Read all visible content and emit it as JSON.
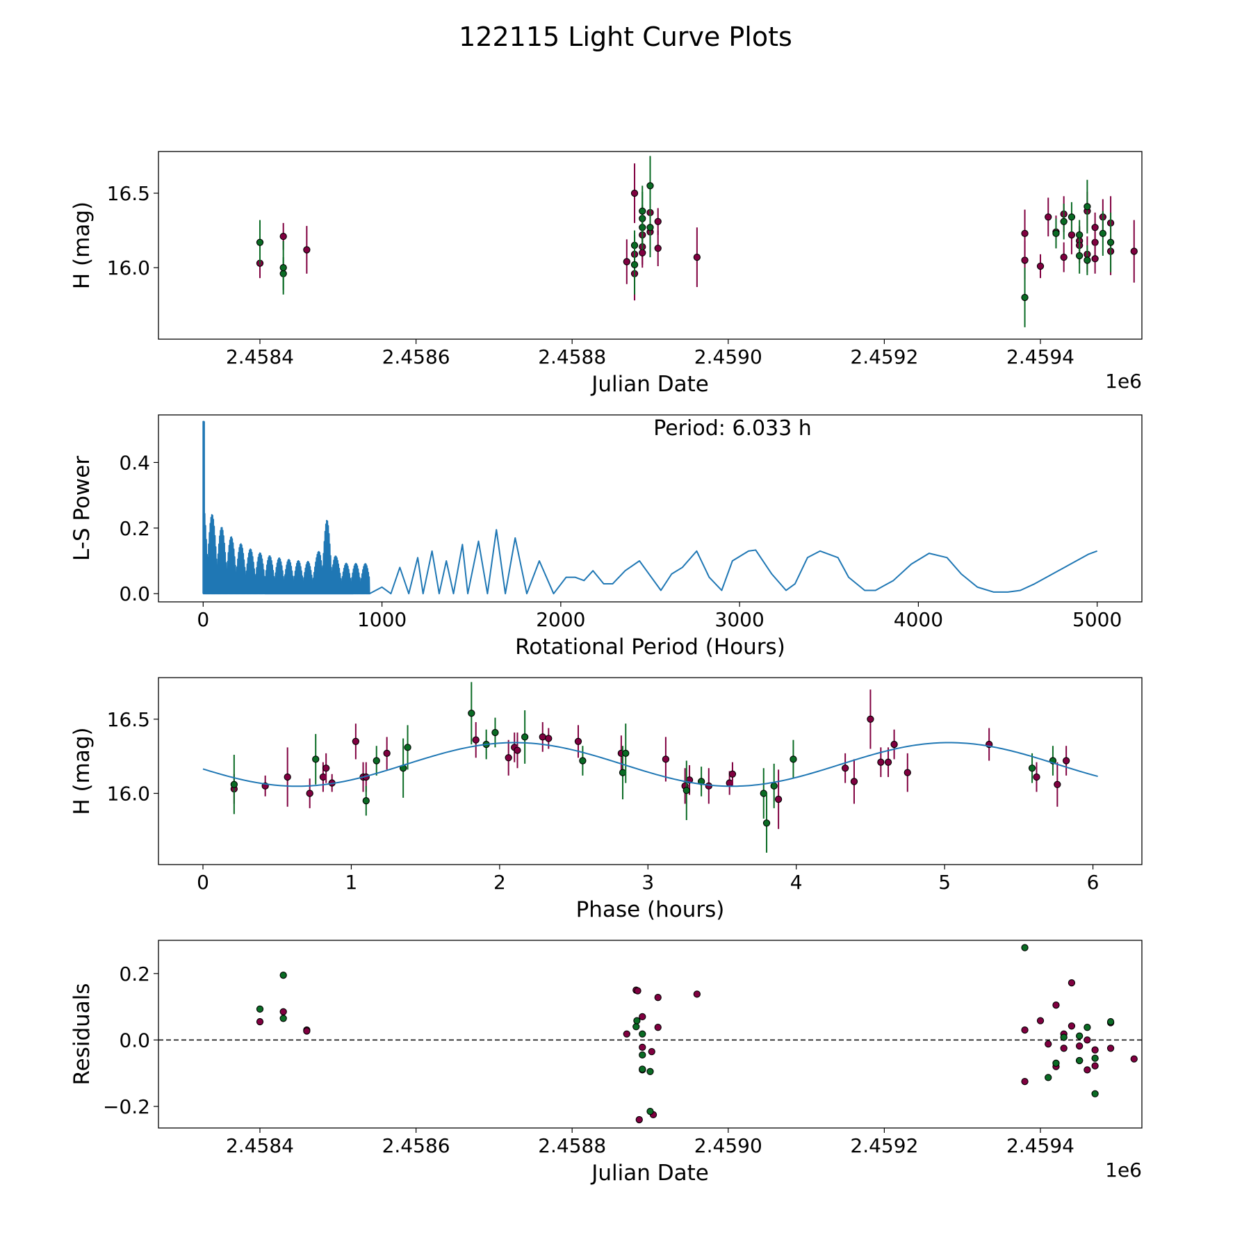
{
  "figure_title": "122115 Light Curve Plots",
  "colors": {
    "magenta": "#800040",
    "green": "#0a6b24",
    "blue": "#1f77b4",
    "edge": "#000000"
  },
  "chart_data": [
    {
      "name": "lightcurve",
      "type": "scatter",
      "xlabel": "Julian Date",
      "ylabel": "H (mag)",
      "offset_label": "1e6",
      "xlim": [
        2.45827,
        2.45953
      ],
      "ylim": [
        15.52,
        16.78
      ],
      "xticks": [
        2.4584,
        2.4586,
        2.4588,
        2.459,
        2.4592,
        2.4594
      ],
      "xtick_labels": [
        "2.4584",
        "2.4586",
        "2.4588",
        "2.4590",
        "2.4592",
        "2.4594"
      ],
      "yticks": [
        16.0,
        16.5
      ],
      "ytick_labels": [
        "16.0",
        "16.5"
      ],
      "series": [
        {
          "name": "filter-magenta",
          "points": [
            [
              2.4584,
              16.03,
              0.1
            ],
            [
              2.45843,
              16.21,
              0.09
            ],
            [
              2.45846,
              16.12,
              0.16
            ],
            [
              2.45887,
              16.04,
              0.15
            ],
            [
              2.45888,
              16.09,
              0.12
            ],
            [
              2.45888,
              15.96,
              0.18
            ],
            [
              2.45888,
              16.5,
              0.2
            ],
            [
              2.45889,
              16.22,
              0.15
            ],
            [
              2.45889,
              16.14,
              0.12
            ],
            [
              2.45889,
              16.1,
              0.1
            ],
            [
              2.4589,
              16.24,
              0.12
            ],
            [
              2.4589,
              16.37,
              0.15
            ],
            [
              2.45891,
              16.31,
              0.09
            ],
            [
              2.45891,
              16.13,
              0.12
            ],
            [
              2.45896,
              16.07,
              0.2
            ],
            [
              2.45938,
              16.05,
              0.13
            ],
            [
              2.45938,
              16.23,
              0.16
            ],
            [
              2.4594,
              16.01,
              0.08
            ],
            [
              2.45941,
              16.34,
              0.13
            ],
            [
              2.45942,
              16.24,
              0.11
            ],
            [
              2.45943,
              16.36,
              0.12
            ],
            [
              2.45943,
              16.07,
              0.1
            ],
            [
              2.45944,
              16.22,
              0.13
            ],
            [
              2.45945,
              16.18,
              0.1
            ],
            [
              2.45945,
              16.15,
              0.12
            ],
            [
              2.45946,
              16.09,
              0.12
            ],
            [
              2.45946,
              16.38,
              0.13
            ],
            [
              2.45947,
              16.17,
              0.1
            ],
            [
              2.45947,
              16.27,
              0.1
            ],
            [
              2.45947,
              16.06,
              0.1
            ],
            [
              2.45948,
              16.34,
              0.12
            ],
            [
              2.45949,
              16.3,
              0.18
            ],
            [
              2.45949,
              16.11,
              0.16
            ],
            [
              2.45952,
              16.11,
              0.21
            ]
          ]
        },
        {
          "name": "filter-green",
          "points": [
            [
              2.4584,
              16.17,
              0.15
            ],
            [
              2.45843,
              15.96,
              0.11
            ],
            [
              2.45843,
              16.0,
              0.18
            ],
            [
              2.45888,
              16.15,
              0.1
            ],
            [
              2.45888,
              16.02,
              0.2
            ],
            [
              2.45889,
              16.27,
              0.15
            ],
            [
              2.45889,
              16.33,
              0.18
            ],
            [
              2.45889,
              16.38,
              0.17
            ],
            [
              2.4589,
              16.55,
              0.2
            ],
            [
              2.4589,
              16.27,
              0.2
            ],
            [
              2.45938,
              15.8,
              0.2
            ],
            [
              2.45942,
              16.23,
              0.1
            ],
            [
              2.45943,
              16.31,
              0.12
            ],
            [
              2.45944,
              16.34,
              0.1
            ],
            [
              2.45945,
              16.22,
              0.1
            ],
            [
              2.45945,
              16.08,
              0.12
            ],
            [
              2.45946,
              16.05,
              0.1
            ],
            [
              2.45946,
              16.41,
              0.18
            ],
            [
              2.45948,
              16.23,
              0.15
            ],
            [
              2.45949,
              16.17,
              0.2
            ]
          ]
        }
      ]
    },
    {
      "name": "periodogram",
      "type": "line",
      "xlabel": "Rotational Period (Hours)",
      "ylabel": "L-S Power",
      "xlim": [
        -250,
        5250
      ],
      "ylim": [
        -0.025,
        0.545
      ],
      "xticks": [
        0,
        1000,
        2000,
        3000,
        4000,
        5000
      ],
      "xtick_labels": [
        "0",
        "1000",
        "2000",
        "3000",
        "4000",
        "5000"
      ],
      "yticks": [
        0.0,
        0.2,
        0.4
      ],
      "ytick_labels": [
        "0.0",
        "0.2",
        "0.4"
      ],
      "annotation": "Period: 6.033 h",
      "peak": {
        "x": 6.033,
        "y": 0.525
      },
      "series": [
        {
          "name": "L-S power",
          "x": [
            930,
            1000,
            1050,
            1100,
            1150,
            1200,
            1230,
            1280,
            1320,
            1360,
            1400,
            1450,
            1480,
            1540,
            1590,
            1640,
            1690,
            1745,
            1810,
            1880,
            1960,
            2030,
            2080,
            2130,
            2180,
            2240,
            2290,
            2360,
            2440,
            2480,
            2560,
            2620,
            2680,
            2760,
            2830,
            2900,
            2960,
            3050,
            3090,
            3180,
            3260,
            3310,
            3380,
            3450,
            3550,
            3610,
            3700,
            3760,
            3860,
            3960,
            4060,
            4160,
            4240,
            4330,
            4420,
            4500,
            4570,
            4650,
            4750,
            4850,
            4950,
            5000
          ],
          "y": [
            0.0,
            0.02,
            0.0,
            0.08,
            0.0,
            0.11,
            0.0,
            0.13,
            0.0,
            0.1,
            0.0,
            0.15,
            0.0,
            0.16,
            0.0,
            0.195,
            0.0,
            0.17,
            0.0,
            0.1,
            0.0,
            0.05,
            0.05,
            0.04,
            0.07,
            0.03,
            0.03,
            0.07,
            0.1,
            0.07,
            0.01,
            0.06,
            0.08,
            0.13,
            0.05,
            0.01,
            0.1,
            0.13,
            0.133,
            0.06,
            0.01,
            0.03,
            0.11,
            0.13,
            0.11,
            0.05,
            0.01,
            0.01,
            0.04,
            0.09,
            0.123,
            0.11,
            0.06,
            0.02,
            0.005,
            0.005,
            0.01,
            0.03,
            0.06,
            0.09,
            0.12,
            0.13
          ]
        }
      ]
    },
    {
      "name": "phased",
      "type": "scatter",
      "xlabel": "Phase (hours)",
      "ylabel": "H (mag)",
      "xlim": [
        -0.3,
        6.33
      ],
      "ylim": [
        15.52,
        16.78
      ],
      "xticks": [
        0,
        1,
        2,
        3,
        4,
        5,
        6
      ],
      "xtick_labels": [
        "0",
        "1",
        "2",
        "3",
        "4",
        "5",
        "6"
      ],
      "yticks": [
        16.0,
        16.5
      ],
      "ytick_labels": [
        "16.0",
        "16.5"
      ],
      "model": {
        "mean": 16.195,
        "amplitude": 0.147,
        "period": 2.93,
        "phase_of_max": 2.1,
        "x_max": 6.033
      },
      "series": [
        {
          "name": "filter-magenta",
          "points": [
            [
              0.21,
              16.03,
              0.1
            ],
            [
              0.42,
              16.05,
              0.07
            ],
            [
              0.57,
              16.11,
              0.2
            ],
            [
              0.72,
              16.0,
              0.1
            ],
            [
              0.81,
              16.11,
              0.1
            ],
            [
              0.83,
              16.17,
              0.1
            ],
            [
              0.87,
              16.07,
              0.06
            ],
            [
              1.03,
              16.35,
              0.12
            ],
            [
              1.08,
              16.11,
              0.1
            ],
            [
              1.1,
              16.11,
              0.1
            ],
            [
              1.24,
              16.27,
              0.11
            ],
            [
              1.84,
              16.36,
              0.12
            ],
            [
              2.06,
              16.24,
              0.12
            ],
            [
              2.1,
              16.31,
              0.1
            ],
            [
              2.12,
              16.29,
              0.12
            ],
            [
              2.29,
              16.38,
              0.1
            ],
            [
              2.33,
              16.37,
              0.07
            ],
            [
              2.53,
              16.35,
              0.11
            ],
            [
              2.82,
              16.27,
              0.12
            ],
            [
              3.12,
              16.23,
              0.15
            ],
            [
              3.25,
              16.05,
              0.12
            ],
            [
              3.28,
              16.09,
              0.1
            ],
            [
              3.41,
              16.05,
              0.12
            ],
            [
              3.55,
              16.07,
              0.08
            ],
            [
              3.57,
              16.13,
              0.08
            ],
            [
              3.88,
              15.96,
              0.2
            ],
            [
              4.33,
              16.17,
              0.1
            ],
            [
              4.39,
              16.08,
              0.15
            ],
            [
              4.5,
              16.5,
              0.2
            ],
            [
              4.57,
              16.21,
              0.1
            ],
            [
              4.62,
              16.21,
              0.1
            ],
            [
              4.66,
              16.33,
              0.1
            ],
            [
              4.75,
              16.14,
              0.13
            ],
            [
              5.3,
              16.33,
              0.11
            ],
            [
              5.62,
              16.11,
              0.1
            ],
            [
              5.76,
              16.06,
              0.15
            ],
            [
              5.82,
              16.22,
              0.1
            ]
          ]
        },
        {
          "name": "filter-green",
          "points": [
            [
              0.21,
              16.06,
              0.2
            ],
            [
              0.76,
              16.23,
              0.17
            ],
            [
              1.1,
              15.95,
              0.1
            ],
            [
              1.17,
              16.22,
              0.1
            ],
            [
              1.35,
              16.17,
              0.2
            ],
            [
              1.38,
              16.31,
              0.15
            ],
            [
              1.81,
              16.54,
              0.21
            ],
            [
              1.91,
              16.33,
              0.1
            ],
            [
              1.97,
              16.41,
              0.1
            ],
            [
              2.17,
              16.38,
              0.18
            ],
            [
              2.56,
              16.22,
              0.1
            ],
            [
              2.83,
              16.14,
              0.18
            ],
            [
              2.85,
              16.27,
              0.2
            ],
            [
              3.26,
              16.02,
              0.2
            ],
            [
              3.36,
              16.08,
              0.1
            ],
            [
              3.78,
              16.0,
              0.17
            ],
            [
              3.8,
              15.8,
              0.2
            ],
            [
              3.85,
              16.05,
              0.15
            ],
            [
              3.98,
              16.23,
              0.13
            ],
            [
              5.59,
              16.17,
              0.1
            ],
            [
              5.73,
              16.22,
              0.1
            ]
          ]
        }
      ]
    },
    {
      "name": "residuals",
      "type": "scatter",
      "xlabel": "Julian Date",
      "ylabel": "Residuals",
      "offset_label": "1e6",
      "xlim": [
        2.45827,
        2.45953
      ],
      "ylim": [
        -0.265,
        0.3
      ],
      "xticks": [
        2.4584,
        2.4586,
        2.4588,
        2.459,
        2.4592,
        2.4594
      ],
      "xtick_labels": [
        "2.4584",
        "2.4586",
        "2.4588",
        "2.4590",
        "2.4592",
        "2.4594"
      ],
      "yticks": [
        -0.2,
        0.0,
        0.2
      ],
      "ytick_labels": [
        "−0.2",
        "0.0",
        "0.2"
      ],
      "zero_line": 0.0,
      "series": [
        {
          "name": "filter-magenta",
          "points": [
            [
              2.4584,
              0.055
            ],
            [
              2.45843,
              0.085
            ],
            [
              2.45846,
              0.03
            ],
            [
              2.45846,
              0.027
            ],
            [
              2.45887,
              0.018
            ],
            [
              2.458882,
              0.15
            ],
            [
              2.458884,
              0.148
            ],
            [
              2.458886,
              -0.24
            ],
            [
              2.45889,
              0.07
            ],
            [
              2.45889,
              -0.09
            ],
            [
              2.45889,
              -0.022
            ],
            [
              2.458902,
              -0.035
            ],
            [
              2.458904,
              -0.225
            ],
            [
              2.45891,
              0.038
            ],
            [
              2.45891,
              0.128
            ],
            [
              2.45896,
              0.138
            ],
            [
              2.45938,
              0.03
            ],
            [
              2.45938,
              -0.125
            ],
            [
              2.4594,
              0.058
            ],
            [
              2.45941,
              -0.012
            ],
            [
              2.45942,
              0.105
            ],
            [
              2.45942,
              -0.08
            ],
            [
              2.45943,
              0.018
            ],
            [
              2.45943,
              -0.025
            ],
            [
              2.45944,
              0.042
            ],
            [
              2.45944,
              0.172
            ],
            [
              2.45945,
              -0.018
            ],
            [
              2.45945,
              -0.062
            ],
            [
              2.45946,
              -0.09
            ],
            [
              2.45946,
              0.0
            ],
            [
              2.45947,
              -0.03
            ],
            [
              2.45947,
              -0.078
            ],
            [
              2.45949,
              0.052
            ],
            [
              2.45949,
              -0.025
            ],
            [
              2.45952,
              -0.057
            ]
          ]
        },
        {
          "name": "filter-green",
          "points": [
            [
              2.4584,
              0.093
            ],
            [
              2.45843,
              0.195
            ],
            [
              2.45843,
              0.065
            ],
            [
              2.458882,
              0.04
            ],
            [
              2.458883,
              0.058
            ],
            [
              2.45889,
              0.018
            ],
            [
              2.45889,
              -0.088
            ],
            [
              2.45889,
              -0.045
            ],
            [
              2.4589,
              -0.095
            ],
            [
              2.4589,
              -0.215
            ],
            [
              2.45938,
              0.278
            ],
            [
              2.45941,
              -0.113
            ],
            [
              2.45942,
              -0.07
            ],
            [
              2.45943,
              0.008
            ],
            [
              2.45945,
              0.012
            ],
            [
              2.45945,
              -0.062
            ],
            [
              2.45946,
              0.038
            ],
            [
              2.45947,
              -0.055
            ],
            [
              2.45947,
              -0.162
            ],
            [
              2.45949,
              0.055
            ]
          ]
        }
      ]
    }
  ]
}
